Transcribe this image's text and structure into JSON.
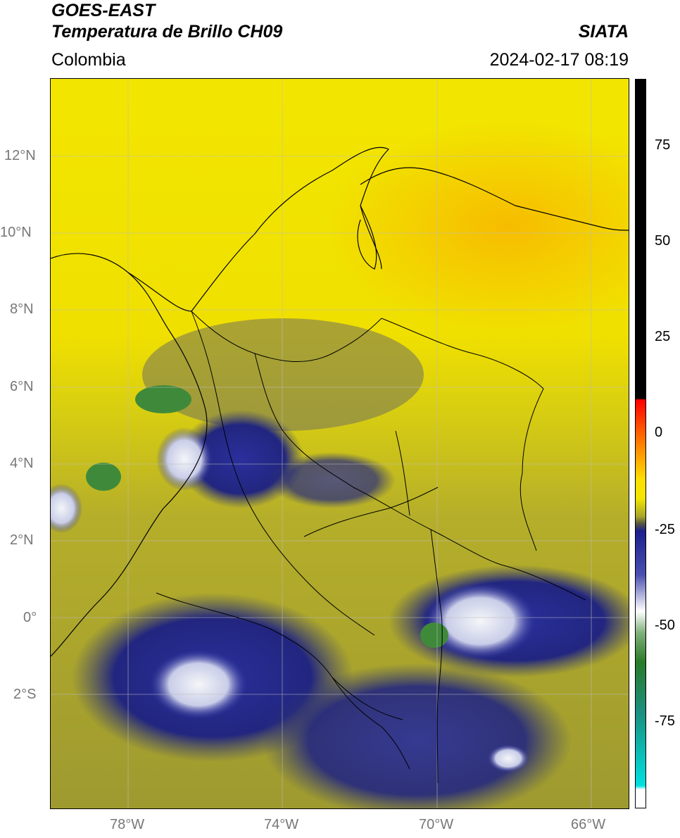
{
  "header": {
    "line1": "GOES-EAST",
    "line2": "Temperatura de Brillo CH09",
    "region": "Colombia",
    "org": "SIATA",
    "datetime": "2024-02-17 08:19"
  },
  "map": {
    "lat_ticks": [
      "12°N",
      "10°N",
      "8°N",
      "6°N",
      "4°N",
      "2°N",
      "0°",
      "2°S"
    ],
    "lon_ticks": [
      "78°W",
      "74°W",
      "70°W",
      "66°W"
    ],
    "colors": {
      "warm": "#f2e600",
      "mid": "#a8a52a",
      "cold": "#1c1f8c",
      "coldest": "#e8eef0",
      "green": "#3f8a3a",
      "orange": "#f7c200"
    }
  },
  "colorbar": {
    "labels": [
      "75",
      "50",
      "25",
      "0",
      "-25",
      "-50",
      "-75"
    ],
    "values": [
      75,
      50,
      25,
      0,
      -25,
      -50,
      -75
    ]
  }
}
